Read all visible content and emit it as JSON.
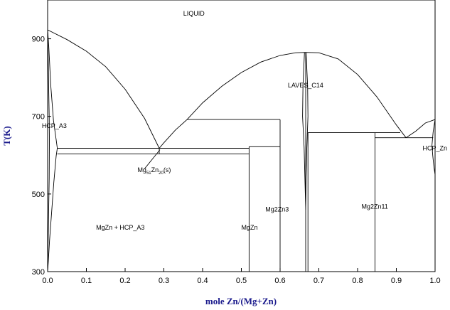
{
  "chart_data": {
    "type": "line",
    "title": "",
    "xlabel": "mole Zn/(Mg+Zn)",
    "ylabel": "T(K)",
    "xlim": [
      0,
      1
    ],
    "ylim": [
      300,
      1000
    ],
    "x_ticks": [
      0.0,
      0.1,
      0.2,
      0.3,
      0.4,
      0.5,
      0.6,
      0.7,
      0.8,
      0.9,
      1.0
    ],
    "x_tick_labels": [
      "0.0",
      "0.1",
      "0.2",
      "0.3",
      "0.4",
      "0.5",
      "0.6",
      "0.7",
      "0.8",
      "0.9",
      "1.0"
    ],
    "y_ticks": [
      300,
      500,
      700,
      900
    ],
    "y_tick_labels": [
      "300",
      "500",
      "700",
      "900"
    ],
    "grid": false,
    "series": [
      {
        "points": [
          [
            0.0,
            923
          ],
          [
            0.05,
            898
          ],
          [
            0.1,
            868
          ],
          [
            0.15,
            828
          ],
          [
            0.2,
            770
          ],
          [
            0.25,
            695
          ],
          [
            0.288,
            618
          ]
        ]
      },
      {
        "points": [
          [
            0.288,
            618
          ],
          [
            0.3,
            632
          ],
          [
            0.33,
            665
          ],
          [
            0.36,
            692
          ],
          [
            0.4,
            735
          ],
          [
            0.45,
            778
          ],
          [
            0.5,
            813
          ],
          [
            0.55,
            840
          ],
          [
            0.6,
            857
          ],
          [
            0.64,
            864
          ],
          [
            0.665,
            865
          ],
          [
            0.7,
            864
          ],
          [
            0.75,
            848
          ],
          [
            0.8,
            808
          ],
          [
            0.85,
            750
          ],
          [
            0.9,
            678
          ],
          [
            0.925,
            645
          ]
        ]
      },
      {
        "points": [
          [
            0.925,
            645
          ],
          [
            0.95,
            662
          ],
          [
            0.975,
            683
          ],
          [
            1.0,
            692
          ]
        ]
      },
      {
        "points": [
          [
            0.0,
            923
          ],
          [
            0.003,
            880
          ],
          [
            0.008,
            780
          ],
          [
            0.015,
            690
          ],
          [
            0.022,
            640
          ],
          [
            0.025,
            618
          ],
          [
            0.022,
            598
          ],
          [
            0.016,
            530
          ],
          [
            0.01,
            450
          ],
          [
            0.005,
            380
          ],
          [
            0.002,
            330
          ],
          [
            0.0,
            300
          ]
        ]
      },
      {
        "points": [
          [
            0.0,
            923
          ],
          [
            0.0015,
            850
          ],
          [
            0.003,
            760
          ],
          [
            0.004,
            700
          ],
          [
            0.0045,
            640
          ],
          [
            0.004,
            540
          ],
          [
            0.002,
            420
          ],
          [
            0.0,
            300
          ]
        ]
      },
      {
        "points": [
          [
            0.663,
            865
          ],
          [
            0.659,
            780
          ],
          [
            0.658,
            700
          ],
          [
            0.662,
            620
          ],
          [
            0.664,
            540
          ],
          [
            0.666,
            460
          ]
        ]
      },
      {
        "points": [
          [
            0.667,
            865
          ],
          [
            0.671,
            780
          ],
          [
            0.672,
            700
          ],
          [
            0.669,
            620
          ],
          [
            0.667,
            540
          ],
          [
            0.666,
            460
          ]
        ]
      },
      {
        "points": [
          [
            1.0,
            692
          ],
          [
            0.995,
            660
          ],
          [
            0.992,
            625
          ],
          [
            0.994,
            600
          ],
          [
            0.997,
            570
          ],
          [
            1.0,
            550
          ]
        ]
      },
      {
        "points": [
          [
            0.025,
            618
          ],
          [
            0.52,
            618
          ]
        ]
      },
      {
        "points": [
          [
            0.025,
            603
          ],
          [
            0.52,
            603
          ]
        ]
      },
      {
        "points": [
          [
            0.288,
            618
          ],
          [
            0.288,
            603
          ]
        ]
      },
      {
        "points": [
          [
            0.52,
            622
          ],
          [
            0.6,
            622
          ]
        ]
      },
      {
        "points": [
          [
            0.36,
            692
          ],
          [
            0.6,
            692
          ]
        ]
      },
      {
        "points": [
          [
            0.672,
            658
          ],
          [
            0.91,
            658
          ]
        ]
      },
      {
        "points": [
          [
            0.845,
            645
          ],
          [
            0.995,
            645
          ]
        ]
      },
      {
        "points": [
          [
            0.52,
            622
          ],
          [
            0.52,
            300
          ]
        ]
      },
      {
        "points": [
          [
            0.6,
            692
          ],
          [
            0.6,
            300
          ]
        ]
      },
      {
        "points": [
          [
            0.666,
            865
          ],
          [
            0.666,
            300
          ]
        ]
      },
      {
        "points": [
          [
            0.672,
            658
          ],
          [
            0.672,
            300
          ]
        ]
      },
      {
        "points": [
          [
            0.845,
            658
          ],
          [
            0.845,
            300
          ]
        ]
      },
      {
        "points": [
          [
            0.29,
            614
          ],
          [
            0.25,
            565
          ]
        ]
      }
    ],
    "annotations": [
      {
        "text": "LIQUID",
        "x": 0.35,
        "y": 960
      },
      {
        "text": "LAVES_C14",
        "x": 0.62,
        "y": 775
      },
      {
        "text": "HCP_A3",
        "x": -0.015,
        "y": 670
      },
      {
        "text": "HCP_Zn",
        "x": 0.968,
        "y": 612
      },
      {
        "text": "Mg2Zn3",
        "x": 0.562,
        "y": 455
      },
      {
        "text": "Mg2Zn11",
        "x": 0.81,
        "y": 462
      },
      {
        "text": "MgZn + HCP_A3",
        "x": 0.125,
        "y": 408
      },
      {
        "text": "MgZn",
        "x": 0.5,
        "y": 408
      },
      {
        "text": "Mg",
        "x": 0.232,
        "y": 557,
        "subs": [
          "51",
          "20",
          "(s)"
        ],
        "sub_texts": [
          "Zn",
          "51"
        ]
      }
    ]
  }
}
